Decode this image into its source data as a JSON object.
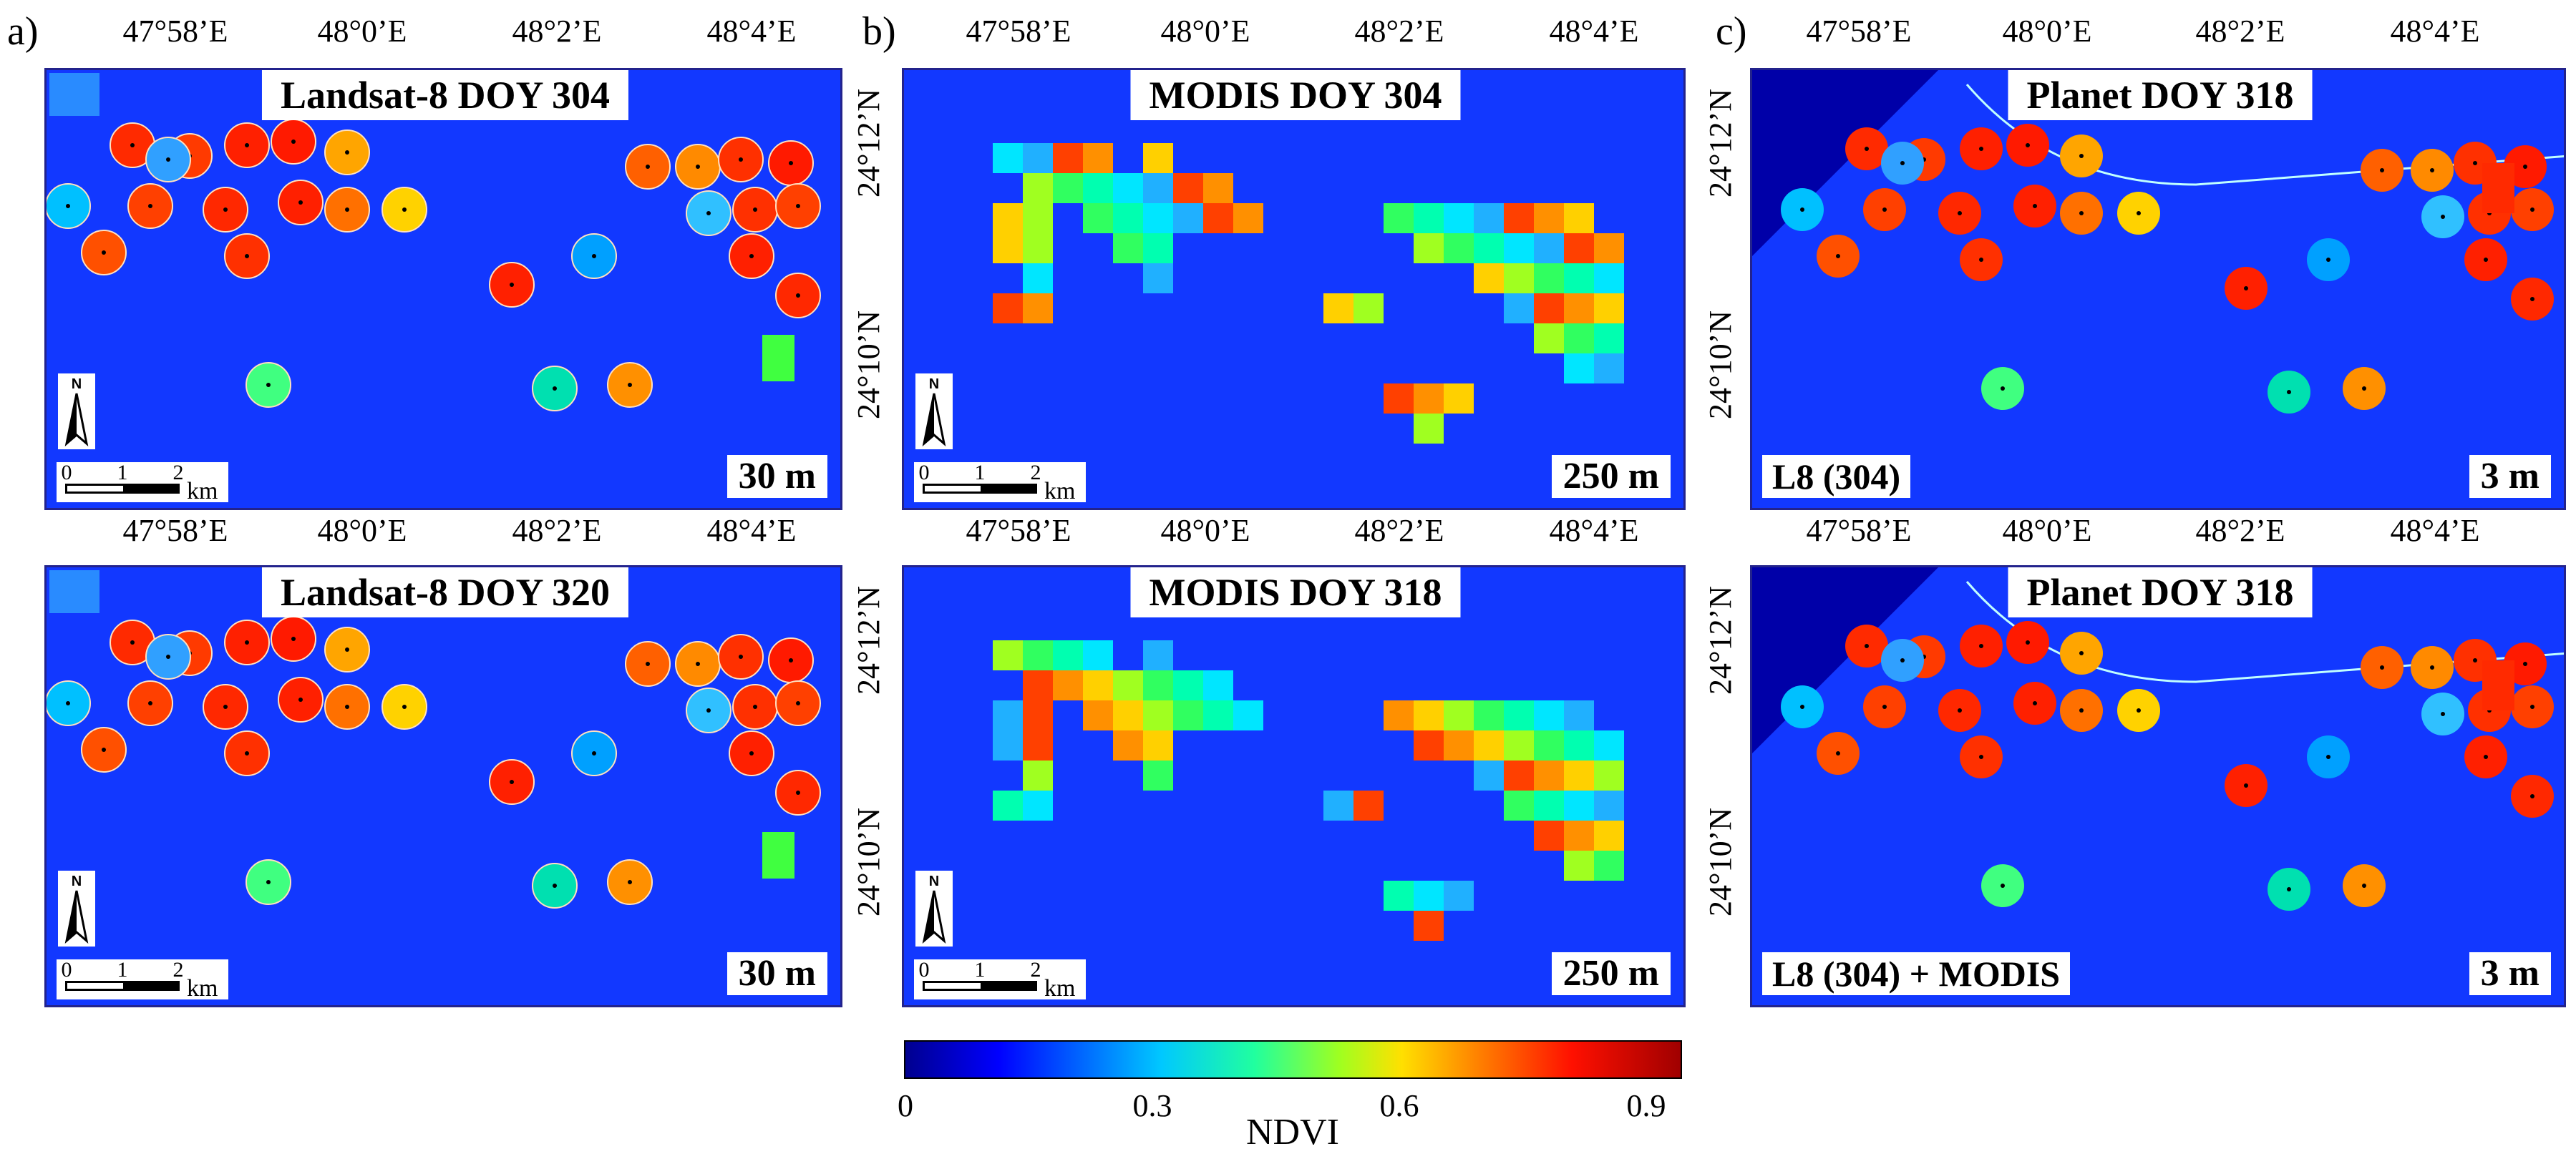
{
  "panels": {
    "a": "a)",
    "b": "b)",
    "c": "c)"
  },
  "lon_labels": [
    "47°58’E",
    "48°0’E",
    "48°2’E",
    "48°4’E"
  ],
  "lat_labels": {
    "upper": "24°12’N",
    "lower": "24°10’N"
  },
  "maps": {
    "a_top": {
      "title": "Landsat-8 DOY 304",
      "resolution": "30 m"
    },
    "a_bottom": {
      "title": "Landsat-8 DOY 320",
      "resolution": "30 m"
    },
    "b_top": {
      "title": "MODIS DOY 304",
      "resolution": "250 m"
    },
    "b_bottom": {
      "title": "MODIS DOY 318",
      "resolution": "250 m"
    },
    "c_top": {
      "title": "Planet DOY 318",
      "resolution": "3 m",
      "source": "L8 (304)"
    },
    "c_bottom": {
      "title": "Planet DOY 318",
      "resolution": "3 m",
      "source": "L8 (304) + MODIS"
    }
  },
  "north_arrow": {
    "label": "N"
  },
  "scale_bar": {
    "ticks": [
      "0",
      "1",
      "2"
    ],
    "unit": "km"
  },
  "colorbar": {
    "label": "NDVI",
    "ticks": [
      "0",
      "0.3",
      "0.6",
      "0.9"
    ],
    "min": 0,
    "max": 0.95
  },
  "colors": {
    "background": "#1238ff",
    "frame": "#23238c"
  }
}
